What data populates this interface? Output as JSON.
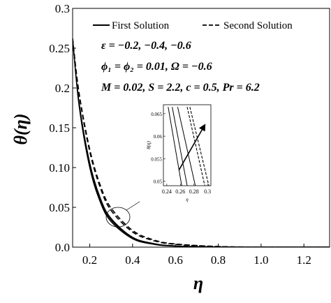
{
  "chart_data": {
    "type": "line",
    "ylabel": "θ(η)",
    "xlabel": "η",
    "xlim": [
      0.12,
      1.32
    ],
    "ylim": [
      0,
      0.3
    ],
    "xticks": [
      "0.2",
      "0.4",
      "0.6",
      "0.8",
      "1.0",
      "1.2"
    ],
    "yticks": [
      "0.0",
      "0.05",
      "0.10",
      "0.15",
      "0.2",
      "0.25",
      "0.3"
    ],
    "legend": {
      "placement": "top",
      "first": "First Solution",
      "second": "Second Solution"
    },
    "annotations": [
      "ε = −0.2, −0.4, −0.6",
      "ϕ₁ = ϕ₂ = 0.01, Ω = −0.6",
      "M = 0.02, S = 2.2, c = 0.5, Pr = 6.2"
    ],
    "series": [
      {
        "style": "solid",
        "x": [
          0.12,
          0.15,
          0.2,
          0.25,
          0.3,
          0.4,
          0.5,
          0.6,
          0.8,
          1.0,
          1.2,
          1.32
        ],
        "y": [
          0.262,
          0.178,
          0.1,
          0.056,
          0.032,
          0.0105,
          0.0035,
          0.0012,
          0.0002,
          0.0,
          0.0,
          0.0
        ]
      },
      {
        "style": "solid",
        "x": [
          0.12,
          0.15,
          0.2,
          0.25,
          0.3,
          0.4,
          0.5,
          0.6,
          0.8,
          1.0,
          1.2,
          1.32
        ],
        "y": [
          0.262,
          0.18,
          0.103,
          0.058,
          0.034,
          0.0115,
          0.004,
          0.0014,
          0.0002,
          0.0,
          0.0,
          0.0
        ]
      },
      {
        "style": "solid",
        "x": [
          0.12,
          0.15,
          0.2,
          0.25,
          0.3,
          0.4,
          0.5,
          0.6,
          0.8,
          1.0,
          1.2,
          1.32
        ],
        "y": [
          0.262,
          0.182,
          0.106,
          0.061,
          0.036,
          0.0125,
          0.0045,
          0.0016,
          0.0002,
          0.0,
          0.0,
          0.0
        ]
      },
      {
        "style": "dashed",
        "x": [
          0.12,
          0.15,
          0.2,
          0.25,
          0.3,
          0.4,
          0.5,
          0.6,
          0.8,
          1.0,
          1.2,
          1.32
        ],
        "y": [
          0.262,
          0.192,
          0.12,
          0.074,
          0.046,
          0.019,
          0.008,
          0.0035,
          0.0007,
          0.0001,
          0.0,
          0.0
        ]
      },
      {
        "style": "dashed",
        "x": [
          0.12,
          0.15,
          0.2,
          0.25,
          0.3,
          0.4,
          0.5,
          0.6,
          0.8,
          1.0,
          1.2,
          1.32
        ],
        "y": [
          0.262,
          0.194,
          0.123,
          0.077,
          0.049,
          0.021,
          0.009,
          0.004,
          0.0008,
          0.0001,
          0.0,
          0.0
        ]
      }
    ],
    "inset": {
      "ylabel": "θ(η)",
      "xlabel": "η",
      "xlim": [
        0.235,
        0.305
      ],
      "ylim": [
        0.049,
        0.067
      ],
      "xticks": [
        "0.24",
        "0.26",
        "0.28",
        "0.3"
      ],
      "yticks": [
        "0.05",
        "0.055",
        "0.06",
        "0.065"
      ],
      "series": [
        {
          "style": "solid",
          "x": [
            0.242,
            0.262
          ],
          "y": [
            0.0665,
            0.049
          ]
        },
        {
          "style": "solid",
          "x": [
            0.248,
            0.27
          ],
          "y": [
            0.0665,
            0.049
          ]
        },
        {
          "style": "solid",
          "x": [
            0.256,
            0.282
          ],
          "y": [
            0.0665,
            0.049
          ]
        },
        {
          "style": "dashed",
          "x": [
            0.27,
            0.296
          ],
          "y": [
            0.0665,
            0.049
          ]
        },
        {
          "style": "dashed",
          "x": [
            0.274,
            0.302
          ],
          "y": [
            0.0665,
            0.049
          ]
        }
      ],
      "arrow": {
        "from": [
          0.258,
          0.0525
        ],
        "to": [
          0.296,
          0.0625
        ]
      }
    }
  }
}
